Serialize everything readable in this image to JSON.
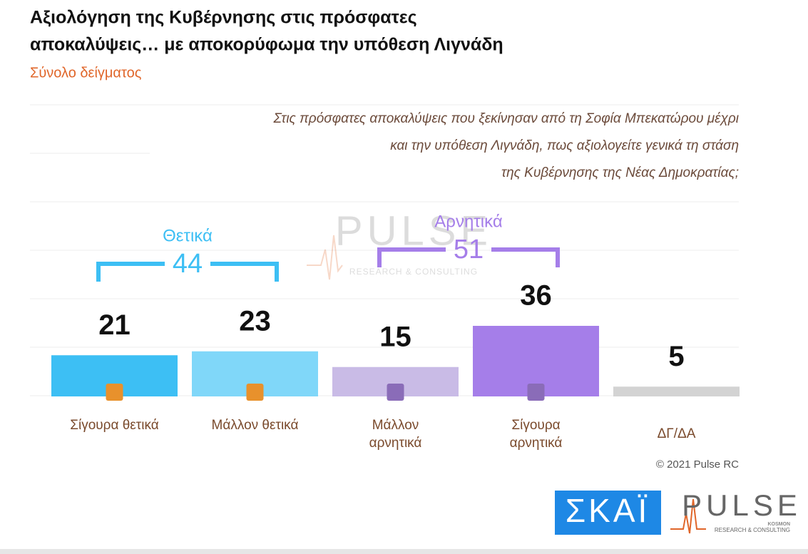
{
  "chart_data": {
    "type": "bar",
    "title": [
      "Αξιολόγηση της Κυβέρνησης στις πρόσφατες",
      "αποκαλύψεις… με αποκορύφωμα την υπόθεση Λιγνάδη"
    ],
    "subtitle": "Σύνολο δείγματος",
    "question": [
      "Στις πρόσφατες αποκαλύψεις που ξεκίνησαν από τη Σοφία Μπεκατώρου μέχρι",
      "και την υπόθεση Λιγνάδη, πως αξιολογείτε γενικά τη στάση",
      "της Κυβέρνησης της Νέας Δημοκρατίας;"
    ],
    "categories": [
      "Σίγουρα θετικά",
      "Μάλλον θετικά",
      "Μάλλον αρνητικά",
      "Σίγουρα αρνητικά",
      "ΔΓ/ΔΑ"
    ],
    "values": [
      21,
      23,
      15,
      36,
      5
    ],
    "colors": [
      "#3dbff4",
      "#80d7f9",
      "#c9bbe6",
      "#a57ee9",
      "#d3d3d3"
    ],
    "groups": [
      {
        "label": "Θετικά",
        "value": 44,
        "color": "#3dbff4"
      },
      {
        "label": "Αρνητικά",
        "value": 51,
        "color": "#a57ee9"
      }
    ],
    "copyright": "© 2021 Pulse RC",
    "logos": {
      "skai": "ΣΚΑΪ",
      "pulse": "PULSE",
      "pulse_sub": "RESEARCH & CONSULTING",
      "kosmon": "KOSMON"
    }
  }
}
